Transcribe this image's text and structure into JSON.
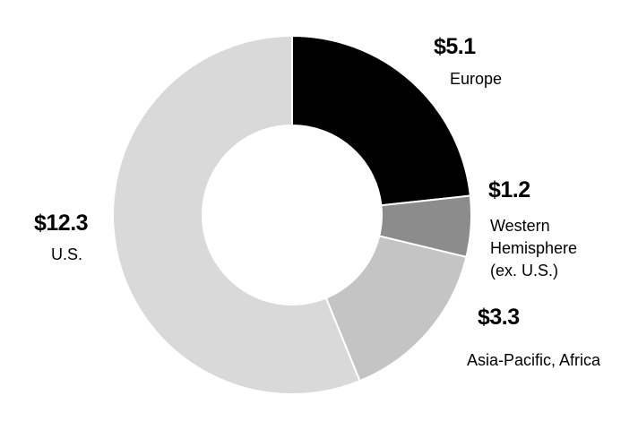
{
  "chart_data": {
    "type": "donut",
    "categories": [
      "Europe",
      "Western Hemisphere (ex. U.S.)",
      "Asia-Pacific, Africa",
      "U.S."
    ],
    "values": [
      5.1,
      1.2,
      3.3,
      12.3
    ],
    "value_labels": [
      "$5.1",
      "$1.2",
      "$3.3",
      "$12.3"
    ],
    "colors": [
      "#000000",
      "#8c8c8c",
      "#c4c4c4",
      "#d9d9d9"
    ]
  }
}
